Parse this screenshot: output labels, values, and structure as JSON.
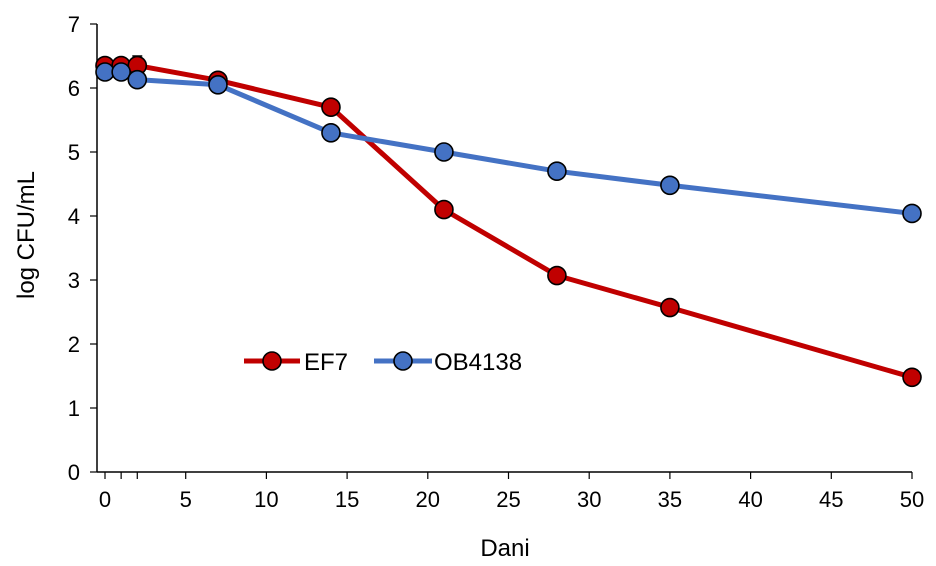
{
  "chart_data": {
    "type": "line",
    "title": "",
    "xlabel": "Dani",
    "ylabel": "log CFU/mL",
    "xlim": [
      0,
      50
    ],
    "ylim": [
      0,
      7
    ],
    "xticks": [
      0,
      5,
      10,
      15,
      20,
      25,
      30,
      35,
      40,
      45,
      50
    ],
    "yticks": [
      0,
      1,
      2,
      3,
      4,
      5,
      6,
      7
    ],
    "grid": false,
    "legend_position": "center-left",
    "series": [
      {
        "name": "EF7",
        "color": "#C00000",
        "marker_fill": "#C00000",
        "x": [
          0,
          1,
          2,
          7,
          14,
          21,
          28,
          35,
          50
        ],
        "y": [
          6.35,
          6.35,
          6.35,
          6.12,
          5.7,
          4.1,
          3.07,
          2.57,
          1.48
        ],
        "error": [
          0.06,
          0.06,
          0.15,
          0.06,
          0.06,
          0.1,
          0.06,
          0.06,
          0.06
        ]
      },
      {
        "name": "OB4138",
        "color": "#4472C4",
        "marker_fill": "#4472C4",
        "x": [
          0,
          1,
          2,
          7,
          14,
          21,
          28,
          35,
          50
        ],
        "y": [
          6.25,
          6.25,
          6.13,
          6.05,
          5.3,
          5.0,
          4.7,
          4.48,
          4.04
        ],
        "error": [
          0.06,
          0.06,
          0.06,
          0.1,
          0.06,
          0.12,
          0.06,
          0.06,
          0.06
        ]
      }
    ]
  }
}
